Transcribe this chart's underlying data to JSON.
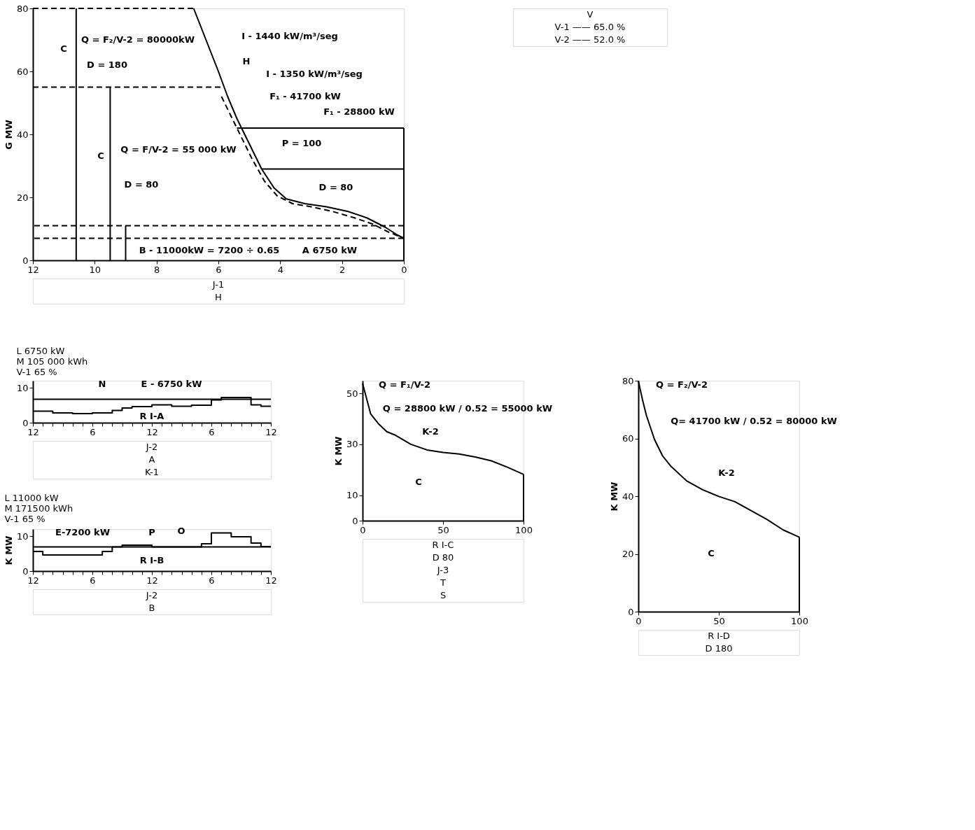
{
  "chart_data": [
    {
      "type": "line",
      "ylabel": "G MW",
      "xlim": [
        12,
        0
      ],
      "xticks": [
        12,
        10,
        8,
        6,
        4,
        2,
        0
      ],
      "ylim": [
        0,
        80
      ],
      "yticks": [
        0,
        20,
        40,
        60,
        80
      ],
      "grid": false,
      "series": [
        {
          "color": "#000000",
          "line_style": "solid",
          "x": [
            6.8,
            6.4,
            6.0,
            5.7,
            5.4,
            5.0,
            4.6,
            4.2,
            3.8,
            3.2,
            2.5,
            1.8,
            1.2,
            0.6,
            0.2,
            0
          ],
          "values": [
            80,
            70,
            60,
            52,
            45,
            37,
            29,
            23,
            19.5,
            18,
            17,
            15.5,
            13.5,
            10.5,
            8,
            7
          ]
        },
        {
          "color": "#000000",
          "line_style": "dashed",
          "x": [
            5.9,
            5.6,
            5.3,
            4.9,
            4.5,
            4.1,
            3.6,
            3.0,
            2.3,
            1.6,
            1.0,
            0.5,
            0
          ],
          "values": [
            52,
            46,
            40,
            32,
            25,
            20.5,
            18,
            17,
            15.5,
            13.5,
            11.5,
            9,
            7
          ]
        },
        {
          "color": "#000000",
          "line_style": "dashed",
          "x": [
            12,
            6.8
          ],
          "values": [
            80,
            80
          ]
        },
        {
          "color": "#000000",
          "line_style": "dashed",
          "x": [
            12,
            5.9
          ],
          "values": [
            55,
            55
          ]
        },
        {
          "color": "#000000",
          "line_style": "solid",
          "x": [
            5.4,
            0
          ],
          "values": [
            42,
            42
          ]
        },
        {
          "color": "#000000",
          "line_style": "solid",
          "x": [
            4.6,
            0
          ],
          "values": [
            29,
            29
          ]
        },
        {
          "color": "#000000",
          "line_style": "solid",
          "x": [
            0,
            0
          ],
          "values": [
            0,
            42
          ]
        },
        {
          "color": "#000000",
          "line_style": "solid",
          "x": [
            10.6,
            10.6
          ],
          "values": [
            0,
            80
          ]
        },
        {
          "color": "#000000",
          "line_style": "solid",
          "x": [
            9.5,
            9.5
          ],
          "values": [
            0,
            55
          ]
        },
        {
          "color": "#000000",
          "line_style": "solid",
          "x": [
            9.0,
            9.0
          ],
          "values": [
            0,
            11
          ]
        }
      ],
      "ref_lines": [
        {
          "axis": "y",
          "value": 11,
          "color": "#000000",
          "line_style": "dashed"
        },
        {
          "axis": "y",
          "value": 7,
          "color": "#000000",
          "line_style": "dashed"
        }
      ],
      "annotations": [
        "C",
        "Q = F₂/V-2 = 80000kW",
        "D = 180",
        "I - 1440 kW/m³/seg",
        "H",
        "I - 1350 kW/m³/seg",
        "F₁ - 41700 kW",
        "F₁ - 28800 kW",
        "P = 100",
        "D = 80",
        "C",
        "Q = F/V-2 = 55 000 kW",
        "D = 80",
        "B - 11000kW = 7200 ÷ 0.65",
        "A 6750 kW",
        "J-1",
        "H"
      ]
    },
    {
      "type": "other",
      "annotations": [
        "V",
        "V-1 —— 65.0 %",
        "V-2 —— 52.0 %"
      ]
    },
    {
      "type": "line",
      "subtitle": [
        "L 6750 kW",
        "M 105 000 kWh",
        "V-1 65 %"
      ],
      "categories": [
        "12",
        null,
        null,
        null,
        null,
        null,
        "6",
        null,
        null,
        null,
        null,
        null,
        "12",
        null,
        null,
        null,
        null,
        null,
        "6",
        null,
        null,
        null,
        null,
        null,
        "12"
      ],
      "ylim": [
        0,
        12
      ],
      "yticks": [
        0,
        10
      ],
      "grid": false,
      "series": [
        {
          "type": "step",
          "color": "#000000",
          "line_style": "solid",
          "values": [
            6.7,
            6.7,
            6.7,
            6.7,
            6.7,
            6.7,
            6.7,
            6.7,
            6.7,
            6.7,
            6.7,
            6.7,
            6.7,
            6.7,
            6.7,
            6.7,
            6.7,
            6.7,
            6.7,
            6.7,
            6.7,
            6.7,
            6.7,
            6.7,
            6.7
          ]
        },
        {
          "type": "step",
          "color": "#000000",
          "line_style": "solid",
          "values": [
            3.3,
            3.3,
            2.8,
            2.8,
            2.6,
            2.6,
            2.8,
            2.8,
            3.5,
            4.2,
            4.6,
            4.6,
            5.1,
            5.1,
            4.7,
            4.7,
            5.0,
            5.0,
            6.5,
            7.2,
            7.2,
            7.2,
            5.1,
            4.7,
            4.7
          ]
        }
      ],
      "annotations": [
        "N",
        "E - 6750 kW",
        "R I-A",
        "J-2",
        "A",
        "K-1"
      ]
    },
    {
      "type": "line",
      "ylabel": "K MW",
      "subtitle": [
        "L 11000 kW",
        "M 171500 kWh",
        "V-1 65 %"
      ],
      "categories": [
        "12",
        null,
        null,
        null,
        null,
        null,
        "6",
        null,
        null,
        null,
        null,
        null,
        "12",
        null,
        null,
        null,
        null,
        null,
        "6",
        null,
        null,
        null,
        null,
        null,
        "12"
      ],
      "ylim": [
        0,
        12
      ],
      "yticks": [
        0,
        10
      ],
      "grid": false,
      "series": [
        {
          "type": "step",
          "color": "#000000",
          "line_style": "solid",
          "values": [
            6.9,
            6.9,
            6.9,
            6.9,
            6.9,
            6.9,
            6.9,
            6.9,
            6.9,
            6.9,
            6.9,
            6.9,
            6.9,
            6.9,
            6.9,
            6.9,
            6.9,
            6.9,
            6.9,
            6.9,
            6.9,
            6.9,
            6.9,
            6.9,
            6.9
          ]
        },
        {
          "type": "step",
          "color": "#000000",
          "line_style": "solid",
          "values": [
            5.6,
            4.6,
            4.6,
            4.6,
            4.6,
            4.6,
            4.6,
            5.6,
            6.9,
            7.4,
            7.4,
            7.4,
            6.9,
            6.9,
            6.9,
            6.9,
            6.9,
            7.8,
            10.9,
            10.9,
            9.8,
            9.8,
            8.0,
            7.0,
            7.0
          ]
        }
      ],
      "annotations": [
        "E-7200 kW",
        "P",
        "O",
        "R I-B",
        "J-2",
        "B"
      ]
    },
    {
      "type": "line",
      "ylabel": "K MW",
      "xlim": [
        0,
        100
      ],
      "xticks": [
        0,
        50,
        100
      ],
      "ylim": [
        0,
        55
      ],
      "yticks": [
        0,
        10,
        30,
        50
      ],
      "grid": false,
      "series": [
        {
          "color": "#000000",
          "line_style": "solid",
          "x": [
            0,
            5,
            10,
            15,
            20,
            30,
            40,
            50,
            60,
            70,
            80,
            90,
            100
          ],
          "values": [
            54,
            42,
            38,
            35,
            33.7,
            30,
            27.8,
            26.8,
            26.2,
            25,
            23.5,
            21,
            18.2
          ]
        },
        {
          "color": "#000000",
          "line_style": "solid",
          "x": [
            100,
            100
          ],
          "values": [
            18.2,
            0
          ]
        }
      ],
      "annotations": [
        "Q = F₁/V-2",
        "Q = 28800 kW / 0.52 = 55000 kW",
        "K-2",
        "C",
        "R I-C",
        "D 80",
        "J-3",
        "T",
        "S"
      ]
    },
    {
      "type": "line",
      "ylabel": "K MW",
      "xlim": [
        0,
        100
      ],
      "xticks": [
        0,
        50,
        100
      ],
      "ylim": [
        0,
        80
      ],
      "yticks": [
        0,
        20,
        40,
        60,
        80
      ],
      "grid": false,
      "series": [
        {
          "color": "#000000",
          "line_style": "solid",
          "x": [
            0,
            2.5,
            5,
            10,
            15,
            20,
            30,
            40,
            50,
            60,
            70,
            80,
            90,
            100
          ],
          "values": [
            80,
            73.6,
            68,
            59.7,
            54,
            50.5,
            45.3,
            42.2,
            39.9,
            38.1,
            35,
            31.9,
            28.3,
            25.8
          ]
        },
        {
          "color": "#000000",
          "line_style": "solid",
          "x": [
            100,
            100
          ],
          "values": [
            25.8,
            0
          ]
        }
      ],
      "annotations": [
        "Q = F₂/V-2",
        "Q= 41700 kW / 0.52 = 80000 kW",
        "K-2",
        "C",
        "R I-D",
        "D 180"
      ]
    }
  ]
}
